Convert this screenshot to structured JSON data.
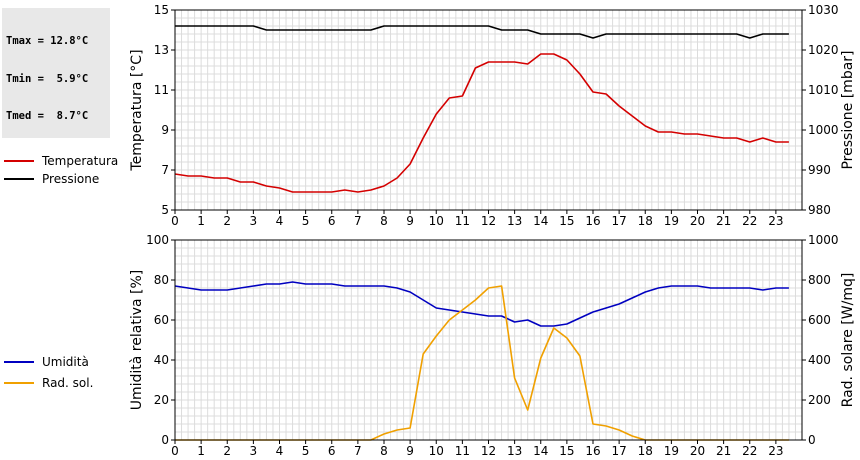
{
  "stats": {
    "lines": [
      "Tmax = 12.8°C",
      "Tmin =  5.9°C",
      "Tmed =  8.7°C"
    ]
  },
  "chart_data": [
    {
      "type": "line",
      "x_ticks": [
        "0",
        "1",
        "2",
        "3",
        "4",
        "5",
        "6",
        "7",
        "8",
        "9",
        "10",
        "11",
        "12",
        "13",
        "14",
        "15",
        "16",
        "17",
        "18",
        "19",
        "20",
        "21",
        "22",
        "23"
      ],
      "xlim": [
        0,
        24
      ],
      "ylabel_left": "Temperatura [°C]",
      "ylabel_right": "Pressione [mbar]",
      "ylim_left": [
        5,
        15
      ],
      "ylim_right": [
        980,
        1030
      ],
      "yticks_left": [
        "5",
        "7",
        "9",
        "11",
        "13",
        "15"
      ],
      "yticks_right": [
        "980",
        "990",
        "1000",
        "1010",
        "1020",
        "1030"
      ],
      "grid": true,
      "legend_position": "left",
      "series": [
        {
          "name": "Temperatura",
          "axis": "left",
          "color": "#d40000",
          "x": [
            0,
            0.5,
            1,
            1.5,
            2,
            2.5,
            3,
            3.5,
            4,
            4.5,
            5,
            5.5,
            6,
            6.5,
            7,
            7.5,
            8,
            8.5,
            9,
            9.5,
            10,
            10.5,
            11,
            11.5,
            12,
            12.5,
            13,
            13.5,
            14,
            14.5,
            15,
            15.5,
            16,
            16.5,
            17,
            17.5,
            18,
            18.5,
            19,
            19.5,
            20,
            20.5,
            21,
            21.5,
            22,
            22.5,
            23,
            23.5
          ],
          "values": [
            6.8,
            6.7,
            6.7,
            6.6,
            6.6,
            6.4,
            6.4,
            6.2,
            6.1,
            5.9,
            5.9,
            5.9,
            5.9,
            6.0,
            5.9,
            6.0,
            6.2,
            6.6,
            7.3,
            8.6,
            9.8,
            10.6,
            10.7,
            12.1,
            12.4,
            12.4,
            12.4,
            12.3,
            12.8,
            12.8,
            12.5,
            11.8,
            10.9,
            10.8,
            10.2,
            9.7,
            9.2,
            8.9,
            8.9,
            8.8,
            8.8,
            8.7,
            8.6,
            8.6,
            8.4,
            8.6,
            8.4,
            8.4
          ]
        },
        {
          "name": "Pressione",
          "axis": "right",
          "color": "#000000",
          "x": [
            0,
            0.5,
            1,
            1.5,
            2,
            2.5,
            3,
            3.5,
            4,
            4.5,
            5,
            5.5,
            6,
            6.5,
            7,
            7.5,
            8,
            8.5,
            9,
            9.5,
            10,
            10.5,
            11,
            11.5,
            12,
            12.5,
            13,
            13.5,
            14,
            14.5,
            15,
            15.5,
            16,
            16.5,
            17,
            17.5,
            18,
            18.5,
            19,
            19.5,
            20,
            20.5,
            21,
            21.5,
            22,
            22.5,
            23,
            23.5
          ],
          "values": [
            1026,
            1026,
            1026,
            1026,
            1026,
            1026,
            1026,
            1025,
            1025,
            1025,
            1025,
            1025,
            1025,
            1025,
            1025,
            1025,
            1026,
            1026,
            1026,
            1026,
            1026,
            1026,
            1026,
            1026,
            1026,
            1025,
            1025,
            1025,
            1024,
            1024,
            1024,
            1024,
            1023,
            1024,
            1024,
            1024,
            1024,
            1024,
            1024,
            1024,
            1024,
            1024,
            1024,
            1024,
            1023,
            1024,
            1024,
            1024
          ]
        }
      ]
    },
    {
      "type": "line",
      "x_ticks": [
        "0",
        "1",
        "2",
        "3",
        "4",
        "5",
        "6",
        "7",
        "8",
        "9",
        "10",
        "11",
        "12",
        "13",
        "14",
        "15",
        "16",
        "17",
        "18",
        "19",
        "20",
        "21",
        "22",
        "23"
      ],
      "xlim": [
        0,
        24
      ],
      "ylabel_left": "Umidità relativa [%]",
      "ylabel_right": "Rad. solare [W/mq]",
      "ylim_left": [
        0,
        100
      ],
      "ylim_right": [
        0,
        1000
      ],
      "yticks_left": [
        "0",
        "20",
        "40",
        "60",
        "80",
        "100"
      ],
      "yticks_right": [
        "0",
        "200",
        "400",
        "600",
        "800",
        "1000"
      ],
      "grid": true,
      "legend_position": "left",
      "series": [
        {
          "name": "Umidità",
          "axis": "left",
          "color": "#0000c0",
          "x": [
            0,
            0.5,
            1,
            1.5,
            2,
            2.5,
            3,
            3.5,
            4,
            4.5,
            5,
            5.5,
            6,
            6.5,
            7,
            7.5,
            8,
            8.5,
            9,
            9.5,
            10,
            10.5,
            11,
            11.5,
            12,
            12.5,
            13,
            13.5,
            14,
            14.5,
            15,
            15.5,
            16,
            16.5,
            17,
            17.5,
            18,
            18.5,
            19,
            19.5,
            20,
            20.5,
            21,
            21.5,
            22,
            22.5,
            23,
            23.5
          ],
          "values": [
            77,
            76,
            75,
            75,
            75,
            76,
            77,
            78,
            78,
            79,
            78,
            78,
            78,
            77,
            77,
            77,
            77,
            76,
            74,
            70,
            66,
            65,
            64,
            63,
            62,
            62,
            59,
            60,
            57,
            57,
            58,
            61,
            64,
            66,
            68,
            71,
            74,
            76,
            77,
            77,
            77,
            76,
            76,
            76,
            76,
            75,
            76,
            76
          ]
        },
        {
          "name": "Rad. sol.",
          "axis": "right",
          "color": "#f0a000",
          "x": [
            0,
            0.5,
            1,
            1.5,
            2,
            2.5,
            3,
            3.5,
            4,
            4.5,
            5,
            5.5,
            6,
            6.5,
            7,
            7.5,
            8,
            8.5,
            9,
            9.5,
            10,
            10.5,
            11,
            11.5,
            12,
            12.5,
            13,
            13.5,
            14,
            14.5,
            15,
            15.5,
            16,
            16.5,
            17,
            17.5,
            18,
            18.5,
            19,
            19.5,
            20,
            20.5,
            21,
            21.5,
            22,
            22.5,
            23,
            23.5
          ],
          "values": [
            0,
            0,
            0,
            0,
            0,
            0,
            0,
            0,
            0,
            0,
            0,
            0,
            0,
            0,
            0,
            0,
            30,
            50,
            60,
            430,
            520,
            600,
            650,
            700,
            760,
            770,
            310,
            150,
            410,
            560,
            510,
            420,
            80,
            70,
            50,
            20,
            0,
            0,
            0,
            0,
            0,
            0,
            0,
            0,
            0,
            0,
            0,
            0
          ]
        }
      ]
    }
  ]
}
